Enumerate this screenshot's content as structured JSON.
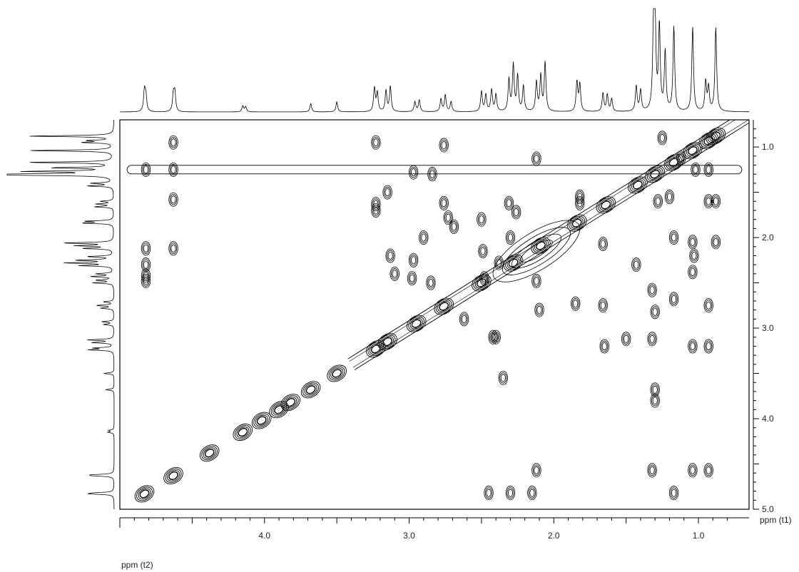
{
  "chart_data": {
    "type": "2D NMR contour plot (COSY)",
    "x_axis": {
      "label": "ppm (t2)",
      "range": [
        5.0,
        0.65
      ],
      "reversed": true,
      "ticks": [
        4.0,
        3.0,
        2.0,
        1.0
      ],
      "tick_labels": [
        "4.0",
        "3.0",
        "2.0",
        "1.0"
      ]
    },
    "y_axis": {
      "label": "ppm (t1)",
      "range": [
        0.7,
        5.0
      ],
      "reversed": true,
      "position": "right",
      "ticks": [
        1.0,
        2.0,
        3.0,
        4.0,
        5.0
      ],
      "tick_labels": [
        "1.0",
        "2.0",
        "3.0",
        "4.0",
        "5.0"
      ]
    },
    "projection_peaks_ppm": [
      {
        "ppm": 4.83,
        "h": 0.25
      },
      {
        "ppm": 4.82,
        "h": 0.18
      },
      {
        "ppm": 4.63,
        "h": 0.2
      },
      {
        "ppm": 4.62,
        "h": 0.22
      },
      {
        "ppm": 4.15,
        "h": 0.07
      },
      {
        "ppm": 4.13,
        "h": 0.06
      },
      {
        "ppm": 3.68,
        "h": 0.1
      },
      {
        "ppm": 3.5,
        "h": 0.12
      },
      {
        "ppm": 3.24,
        "h": 0.28
      },
      {
        "ppm": 3.22,
        "h": 0.22
      },
      {
        "ppm": 3.16,
        "h": 0.25
      },
      {
        "ppm": 3.13,
        "h": 0.3
      },
      {
        "ppm": 2.96,
        "h": 0.12
      },
      {
        "ppm": 2.93,
        "h": 0.14
      },
      {
        "ppm": 2.78,
        "h": 0.15
      },
      {
        "ppm": 2.75,
        "h": 0.2
      },
      {
        "ppm": 2.71,
        "h": 0.12
      },
      {
        "ppm": 2.5,
        "h": 0.24
      },
      {
        "ppm": 2.47,
        "h": 0.2
      },
      {
        "ppm": 2.43,
        "h": 0.26
      },
      {
        "ppm": 2.4,
        "h": 0.2
      },
      {
        "ppm": 2.31,
        "h": 0.38
      },
      {
        "ppm": 2.28,
        "h": 0.55
      },
      {
        "ppm": 2.25,
        "h": 0.42
      },
      {
        "ppm": 2.21,
        "h": 0.3
      },
      {
        "ppm": 2.12,
        "h": 0.35
      },
      {
        "ppm": 2.09,
        "h": 0.42
      },
      {
        "ppm": 2.06,
        "h": 0.58
      },
      {
        "ppm": 1.84,
        "h": 0.35
      },
      {
        "ppm": 1.82,
        "h": 0.32
      },
      {
        "ppm": 1.66,
        "h": 0.22
      },
      {
        "ppm": 1.63,
        "h": 0.2
      },
      {
        "ppm": 1.6,
        "h": 0.15
      },
      {
        "ppm": 1.43,
        "h": 0.3
      },
      {
        "ppm": 1.4,
        "h": 0.25
      },
      {
        "ppm": 1.31,
        "h": 1.0
      },
      {
        "ppm": 1.3,
        "h": 1.0
      },
      {
        "ppm": 1.27,
        "h": 1.0
      },
      {
        "ppm": 1.23,
        "h": 0.7
      },
      {
        "ppm": 1.17,
        "h": 1.0
      },
      {
        "ppm": 1.04,
        "h": 1.0
      },
      {
        "ppm": 0.95,
        "h": 0.35
      },
      {
        "ppm": 0.93,
        "h": 0.28
      },
      {
        "ppm": 0.88,
        "h": 1.0
      }
    ],
    "cross_peaks_ppm": [
      [
        4.82,
        1.25
      ],
      [
        4.82,
        2.12
      ],
      [
        4.82,
        2.3
      ],
      [
        4.82,
        2.42
      ],
      [
        4.82,
        2.48
      ],
      [
        4.63,
        0.95
      ],
      [
        4.63,
        1.25
      ],
      [
        4.63,
        1.58
      ],
      [
        4.63,
        2.12
      ],
      [
        3.23,
        0.95
      ],
      [
        3.23,
        1.63
      ],
      [
        3.23,
        1.7
      ],
      [
        3.15,
        1.5
      ],
      [
        2.97,
        1.28
      ],
      [
        2.9,
        2.0
      ],
      [
        2.84,
        1.3
      ],
      [
        2.76,
        0.98
      ],
      [
        2.76,
        1.62
      ],
      [
        2.73,
        1.78
      ],
      [
        2.69,
        1.88
      ],
      [
        3.13,
        2.2
      ],
      [
        3.1,
        2.4
      ],
      [
        2.98,
        2.45
      ],
      [
        2.97,
        2.25
      ],
      [
        2.85,
        2.5
      ],
      [
        2.5,
        1.8
      ],
      [
        2.49,
        2.15
      ],
      [
        2.48,
        2.45
      ],
      [
        2.38,
        2.28
      ],
      [
        2.26,
        1.72
      ],
      [
        2.3,
        2.0
      ],
      [
        2.31,
        1.62
      ],
      [
        2.12,
        2.48
      ],
      [
        2.12,
        1.13
      ],
      [
        2.1,
        2.8
      ],
      [
        1.85,
        2.73
      ],
      [
        1.82,
        1.55
      ],
      [
        1.82,
        1.62
      ],
      [
        1.66,
        2.07
      ],
      [
        1.66,
        2.75
      ],
      [
        1.65,
        3.2
      ],
      [
        1.43,
        2.3
      ],
      [
        1.32,
        2.58
      ],
      [
        1.3,
        2.82
      ],
      [
        1.32,
        3.12
      ],
      [
        1.32,
        4.57
      ],
      [
        1.28,
        1.6
      ],
      [
        1.25,
        0.9
      ],
      [
        1.2,
        1.55
      ],
      [
        1.17,
        2.0
      ],
      [
        1.17,
        2.68
      ],
      [
        1.17,
        4.82
      ],
      [
        1.04,
        2.05
      ],
      [
        1.03,
        2.2
      ],
      [
        1.04,
        2.38
      ],
      [
        1.04,
        3.2
      ],
      [
        1.04,
        4.57
      ],
      [
        1.02,
        1.25
      ],
      [
        0.93,
        1.25
      ],
      [
        0.93,
        1.6
      ],
      [
        0.93,
        2.75
      ],
      [
        0.93,
        3.2
      ],
      [
        0.93,
        4.57
      ],
      [
        0.88,
        1.6
      ],
      [
        0.88,
        2.05
      ],
      [
        2.62,
        2.9
      ],
      [
        2.42,
        3.1
      ],
      [
        2.4,
        3.1
      ],
      [
        2.3,
        4.82
      ],
      [
        2.15,
        4.82
      ],
      [
        2.12,
        4.57
      ],
      [
        2.45,
        4.82
      ],
      [
        2.35,
        3.55
      ],
      [
        1.3,
        3.68
      ],
      [
        1.3,
        3.8
      ],
      [
        1.5,
        3.12
      ],
      [
        1.12,
        1.12
      ]
    ],
    "diagonal_peaks_ppm": [
      4.83,
      4.63,
      4.38,
      4.15,
      4.02,
      3.9,
      3.82,
      3.68,
      3.5,
      3.23,
      3.15,
      2.95,
      2.76,
      2.5,
      2.28,
      2.09,
      1.84,
      1.64,
      1.42,
      1.3,
      1.17,
      1.04,
      0.93,
      0.88
    ],
    "horizontal_ridge_ppm": 1.25
  }
}
